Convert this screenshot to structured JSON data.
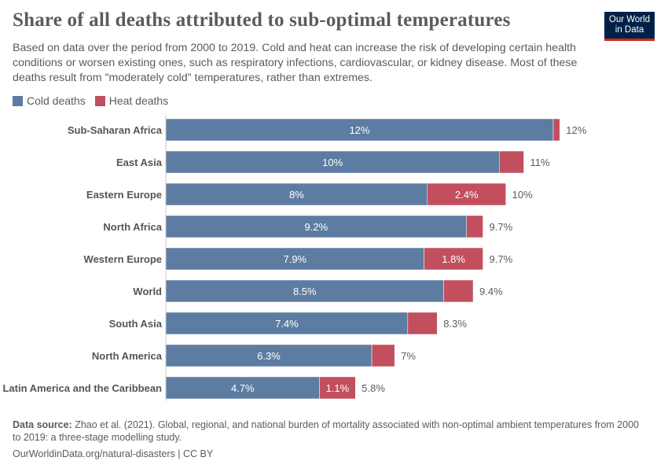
{
  "title": "Share of all deaths attributed to sub-optimal temperatures",
  "subtitle": "Based on data over the period from 2000 to 2019. Cold and heat can increase the risk of developing certain health conditions or worsen existing ones, such as respiratory infections, cardiovascular, or kidney disease. Most of these deaths result from \"moderately cold\" temperatures, rather than extremes.",
  "logo": {
    "line1": "Our World",
    "line2": "in Data"
  },
  "colors": {
    "cold": "#5d7ca2",
    "heat": "#c24f5e"
  },
  "chart_data": {
    "type": "bar",
    "orientation": "horizontal",
    "stacked": true,
    "unit": "%",
    "legend_position": "top-left",
    "grid": false,
    "categories": [
      "Sub-Saharan Africa",
      "East Asia",
      "Eastern Europe",
      "North Africa",
      "Western Europe",
      "World",
      "South Asia",
      "North America",
      "Latin America and the Caribbean"
    ],
    "series": [
      {
        "name": "Cold deaths",
        "values": [
          11.85,
          10.2,
          8.0,
          9.2,
          7.9,
          8.5,
          7.4,
          6.3,
          4.7
        ],
        "labels": [
          "12%",
          "10%",
          "8%",
          "9.2%",
          "7.9%",
          "8.5%",
          "7.4%",
          "6.3%",
          "4.7%"
        ]
      },
      {
        "name": "Heat deaths",
        "values": [
          0.2,
          0.75,
          2.4,
          0.5,
          1.8,
          0.9,
          0.9,
          0.7,
          1.1
        ],
        "labels": [
          "",
          "",
          "2.4%",
          "",
          "1.8%",
          "",
          "",
          "",
          "1.1%"
        ]
      }
    ],
    "total_labels": [
      "12%",
      "11%",
      "10%",
      "9.7%",
      "9.7%",
      "9.4%",
      "8.3%",
      "7%",
      "5.8%"
    ]
  },
  "footer": {
    "source_label": "Data source:",
    "source_text": "Zhao et al. (2021). Global, regional, and national burden of mortality associated with non-optimal ambient temperatures from 2000 to 2019: a three-stage modelling study.",
    "url": "OurWorldinData.org/natural-disasters | CC BY"
  }
}
